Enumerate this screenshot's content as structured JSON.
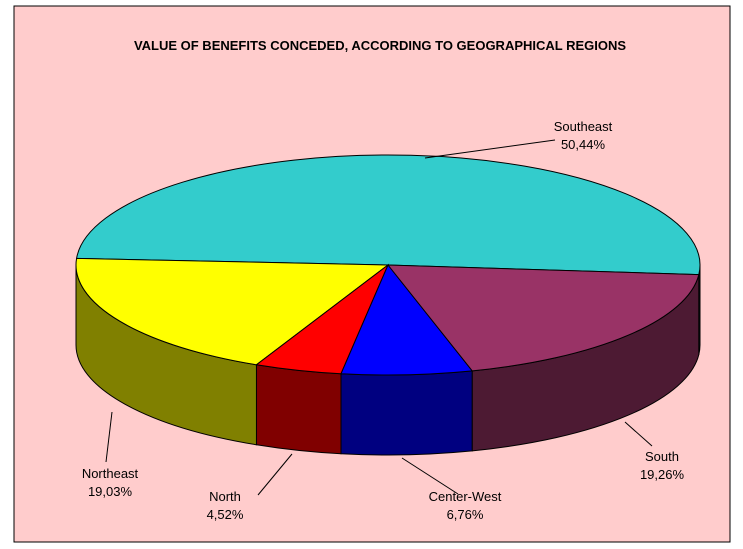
{
  "chart_data": {
    "type": "pie3d",
    "title": "VALUE OF BENEFITS CONCEDED, ACCORDING TO GEOGRAPHICAL REGIONS",
    "categories": [
      "Southeast",
      "Northeast",
      "North",
      "Center-West",
      "South"
    ],
    "values": [
      50.44,
      19.03,
      4.52,
      6.76,
      19.26
    ],
    "value_labels": [
      "50,44%",
      "19,03%",
      "4,52%",
      "6,76%",
      "19,26%"
    ],
    "colors": [
      "#33CCCC",
      "#FFFF00",
      "#FF0000",
      "#0000FF",
      "#993366"
    ],
    "side_colors": [
      "#1A6666",
      "#808000",
      "#800000",
      "#000080",
      "#4D1A33"
    ]
  }
}
